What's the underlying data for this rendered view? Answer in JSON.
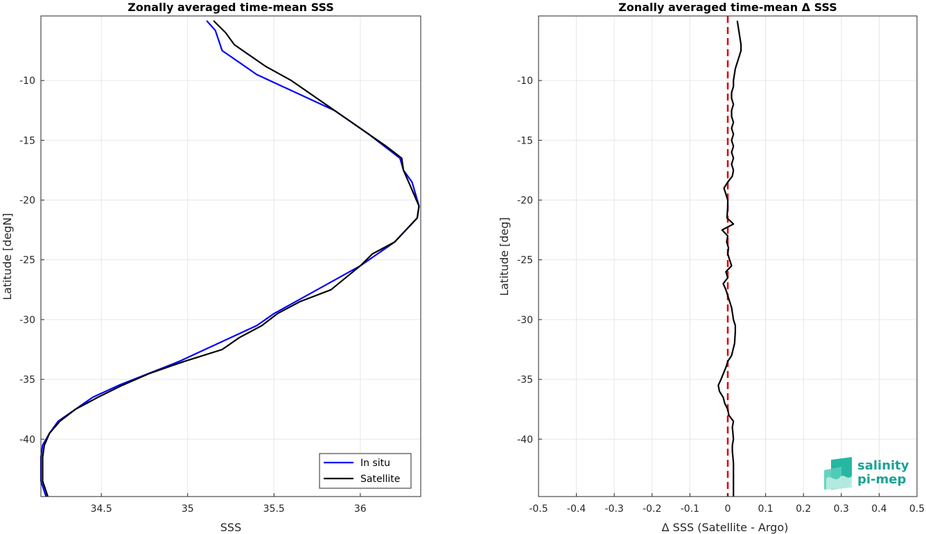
{
  "chart_data": [
    {
      "type": "line",
      "title": "Zonally averaged time-mean SSS",
      "xlabel": "SSS",
      "ylabel": "Latitude [degN]",
      "xlim": [
        34.15,
        36.35
      ],
      "ylim": [
        -44.8,
        -4.6
      ],
      "xticks": [
        34.5,
        35,
        35.5,
        36
      ],
      "xtick_labels": [
        "34.5",
        "35",
        "35.5",
        "36"
      ],
      "yticks": [
        -40,
        -35,
        -30,
        -25,
        -20,
        -15,
        -10
      ],
      "ytick_labels": [
        "-40",
        "-35",
        "-30",
        "-25",
        "-20",
        "-15",
        "-10"
      ],
      "grid": true,
      "legend": "bottom-right",
      "series": [
        {
          "name": "In situ",
          "color": "#0000ff",
          "x": [
            35.11,
            35.16,
            35.2,
            35.3,
            35.4,
            35.55,
            35.85,
            36.05,
            36.23,
            36.25,
            36.3,
            36.34,
            36.33,
            36.2,
            36.0,
            35.75,
            35.5,
            35.4,
            35.1,
            34.95,
            34.6,
            34.45,
            34.35,
            34.25,
            34.2,
            34.16,
            34.15,
            34.15,
            34.18
          ],
          "y": [
            -5,
            -5.8,
            -7.5,
            -8.5,
            -9.5,
            -10.5,
            -12.5,
            -14.5,
            -16.5,
            -17.5,
            -18.5,
            -20.5,
            -21.5,
            -23.5,
            -25.5,
            -27.5,
            -29.5,
            -30.5,
            -32.5,
            -33.5,
            -35.5,
            -36.5,
            -37.5,
            -38.5,
            -39.5,
            -40.5,
            -41.5,
            -43.5,
            -44.8
          ]
        },
        {
          "name": "Satellite",
          "color": "#000000",
          "x": [
            35.15,
            35.22,
            35.27,
            35.35,
            35.45,
            35.6,
            35.85,
            35.95,
            36.05,
            36.15,
            36.24,
            36.25,
            36.28,
            36.34,
            36.33,
            36.2,
            36.07,
            36.0,
            35.83,
            35.65,
            35.52,
            35.43,
            35.3,
            35.2,
            34.98,
            34.78,
            34.62,
            34.48,
            34.35,
            34.26,
            34.2,
            34.17,
            34.16,
            34.16,
            34.19
          ],
          "y": [
            -5,
            -6,
            -7,
            -7.8,
            -8.8,
            -10,
            -12.5,
            -13.5,
            -14.5,
            -15.5,
            -16.5,
            -17.5,
            -18.5,
            -20.5,
            -21.5,
            -23.5,
            -24.5,
            -25.5,
            -27.5,
            -28.5,
            -29.5,
            -30.5,
            -31.5,
            -32.5,
            -33.5,
            -34.5,
            -35.5,
            -36.5,
            -37.5,
            -38.5,
            -39.5,
            -40.5,
            -41.5,
            -43.5,
            -44.8
          ]
        }
      ]
    },
    {
      "type": "line",
      "title": "Zonally averaged time-mean Δ SSS",
      "xlabel": "Δ SSS (Satellite - Argo)",
      "ylabel": "Latitude [deg]",
      "xlim": [
        -0.5,
        0.5
      ],
      "ylim": [
        -44.8,
        -4.6
      ],
      "xticks": [
        -0.5,
        -0.4,
        -0.3,
        -0.2,
        -0.1,
        0,
        0.1,
        0.2,
        0.3,
        0.4,
        0.5
      ],
      "xtick_labels": [
        "-0.5",
        "-0.4",
        "-0.3",
        "-0.2",
        "-0.1",
        "0",
        "0.1",
        "0.2",
        "0.3",
        "0.4",
        "0.5"
      ],
      "yticks": [
        -40,
        -35,
        -30,
        -25,
        -20,
        -15,
        -10
      ],
      "ytick_labels": [
        "-40",
        "-35",
        "-30",
        "-25",
        "-20",
        "-15",
        "-10"
      ],
      "grid": true,
      "reference_line": {
        "x": 0,
        "color": "#e00000",
        "style": "dashed"
      },
      "series": [
        {
          "color": "#000000",
          "x": [
            0.025,
            0.03,
            0.035,
            0.035,
            0.03,
            0.02,
            0.015,
            0.015,
            0.01,
            0.01,
            0.015,
            0.01,
            0.01,
            0.015,
            0.01,
            0.015,
            0.01,
            0.015,
            0.01,
            0.015,
            0.01,
            0.015,
            0.012,
            0.0,
            -0.01,
            -0.005,
            0.0,
            0.0,
            -0.002,
            0.015,
            -0.015,
            0.0,
            -0.003,
            0.002,
            0.0,
            0.005,
            0.01,
            -0.005,
            0.0,
            -0.012,
            -0.005,
            0.0,
            0.01,
            0.015,
            0.02,
            0.02,
            0.018,
            0.01,
            0.0,
            -0.005,
            -0.018,
            -0.025,
            -0.022,
            -0.012,
            -0.008,
            0.0,
            0.003,
            0.015,
            0.012,
            0.015,
            0.012,
            0.012,
            0.015,
            0.015
          ],
          "y": [
            -5,
            -6,
            -7,
            -7.5,
            -8,
            -9,
            -10,
            -10.5,
            -11,
            -11.5,
            -12,
            -12.5,
            -13,
            -13.5,
            -14,
            -14.5,
            -15,
            -15.5,
            -16,
            -16.5,
            -17,
            -17.5,
            -18,
            -18.5,
            -19,
            -19.5,
            -20,
            -20.5,
            -21.5,
            -22,
            -22.5,
            -23,
            -23.5,
            -24,
            -24.5,
            -25,
            -25.5,
            -26,
            -26.5,
            -27,
            -27.5,
            -28,
            -29,
            -30,
            -30.5,
            -31,
            -32,
            -33,
            -33.5,
            -34,
            -35,
            -35.5,
            -36,
            -36.5,
            -37,
            -37.5,
            -38,
            -38.5,
            -39,
            -40,
            -40.5,
            -41,
            -42,
            -44.8
          ]
        }
      ]
    }
  ],
  "logo": {
    "line1": "salinity",
    "line2": "pi-mep"
  }
}
